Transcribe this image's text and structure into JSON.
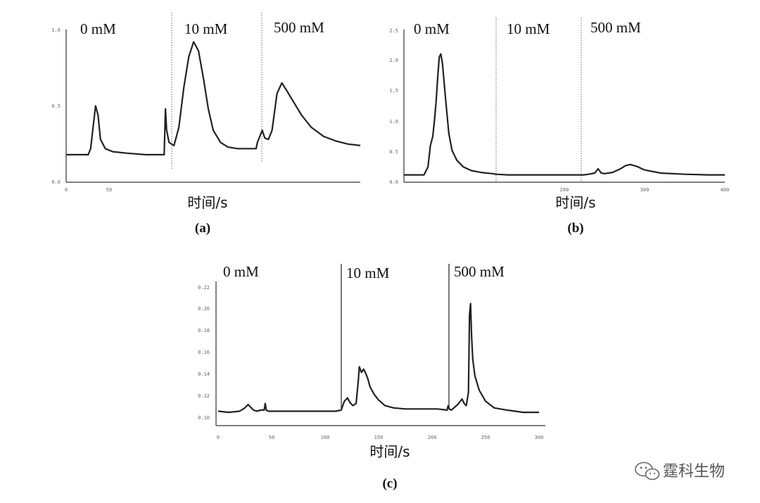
{
  "watermark": {
    "text": "霆科生物",
    "icon": "wechat-icon"
  },
  "chart_data": [
    {
      "type": "line",
      "panel": "(a)",
      "xlabel": "时间/s",
      "x_ticks": [
        "0",
        "50"
      ],
      "y_ticks": [
        "0.0",
        "0.5",
        "1.0"
      ],
      "xlim": [
        0,
        240
      ],
      "ylim": [
        0,
        1.0
      ],
      "segments": [
        {
          "label": "0 mM",
          "start": 0
        },
        {
          "label": "10 mM",
          "start": 80
        },
        {
          "label": "500 mM",
          "start": 155
        }
      ],
      "series": [
        {
          "x": [
            0,
            18,
            20,
            22,
            24,
            26,
            28,
            32,
            38,
            50,
            65,
            80,
            81,
            82,
            84,
            88,
            92,
            96,
            100,
            104,
            108,
            112,
            116,
            120,
            126,
            132,
            140,
            148,
            155,
            156,
            158,
            160,
            162,
            165,
            168,
            172,
            176,
            180,
            186,
            192,
            200,
            210,
            220,
            230,
            240
          ],
          "y": [
            0.18,
            0.18,
            0.22,
            0.36,
            0.5,
            0.44,
            0.28,
            0.22,
            0.2,
            0.19,
            0.18,
            0.18,
            0.48,
            0.34,
            0.26,
            0.24,
            0.36,
            0.62,
            0.82,
            0.92,
            0.86,
            0.68,
            0.48,
            0.34,
            0.26,
            0.23,
            0.22,
            0.22,
            0.22,
            0.26,
            0.3,
            0.34,
            0.29,
            0.28,
            0.34,
            0.58,
            0.65,
            0.6,
            0.52,
            0.44,
            0.36,
            0.3,
            0.27,
            0.25,
            0.24
          ]
        }
      ]
    },
    {
      "type": "line",
      "panel": "(b)",
      "xlabel": "时间/s",
      "x_ticks": [
        "200",
        "300",
        "400"
      ],
      "y_ticks": [
        "0.0",
        "0.5",
        "1.0",
        "1.5",
        "2.0",
        "2.5"
      ],
      "xlim": [
        0,
        400
      ],
      "ylim": [
        0,
        2.5
      ],
      "segments": [
        {
          "label": "0 mM",
          "start": 0
        },
        {
          "label": "10 mM",
          "start": 115
        },
        {
          "label": "500 mM",
          "start": 225
        }
      ],
      "series": [
        {
          "x": [
            0,
            25,
            30,
            33,
            36,
            38,
            40,
            42,
            44,
            46,
            48,
            52,
            56,
            60,
            66,
            74,
            84,
            96,
            110,
            115,
            130,
            160,
            200,
            224,
            230,
            238,
            242,
            246,
            250,
            260,
            270,
            276,
            282,
            290,
            300,
            320,
            350,
            380,
            400
          ],
          "y": [
            0.12,
            0.12,
            0.25,
            0.6,
            0.75,
            1.0,
            1.3,
            1.7,
            2.05,
            2.1,
            1.95,
            1.35,
            0.8,
            0.52,
            0.36,
            0.25,
            0.19,
            0.16,
            0.14,
            0.13,
            0.12,
            0.12,
            0.12,
            0.12,
            0.13,
            0.15,
            0.22,
            0.15,
            0.14,
            0.16,
            0.22,
            0.27,
            0.29,
            0.26,
            0.2,
            0.15,
            0.13,
            0.12,
            0.12
          ]
        }
      ]
    },
    {
      "type": "line",
      "panel": "(c)",
      "xlabel": "时间/s",
      "x_ticks": [
        "0",
        "50",
        "100",
        "150",
        "200",
        "250",
        "300"
      ],
      "y_ticks": [
        "0.10",
        "0.12",
        "0.14",
        "0.16",
        "0.18",
        "0.20",
        "0.22"
      ],
      "xlim": [
        0,
        300
      ],
      "ylim": [
        0.09,
        0.22
      ],
      "segments": [
        {
          "label": "0 mM",
          "start": 0
        },
        {
          "label": "10 mM",
          "start": 115
        },
        {
          "label": "500 mM",
          "start": 215
        }
      ],
      "series": [
        {
          "x": [
            0,
            10,
            20,
            25,
            28,
            30,
            33,
            36,
            40,
            43,
            44,
            45,
            47,
            55,
            70,
            90,
            110,
            115,
            118,
            121,
            123,
            126,
            129,
            131,
            132,
            134,
            136,
            138,
            140,
            142,
            146,
            150,
            156,
            164,
            175,
            190,
            205,
            214,
            215,
            216,
            218,
            224,
            228,
            230,
            232,
            234,
            235,
            236,
            237,
            238,
            240,
            244,
            250,
            258,
            270,
            285,
            300
          ],
          "y": [
            0.103,
            0.102,
            0.103,
            0.106,
            0.109,
            0.107,
            0.104,
            0.103,
            0.104,
            0.104,
            0.11,
            0.104,
            0.103,
            0.103,
            0.103,
            0.103,
            0.103,
            0.104,
            0.112,
            0.115,
            0.111,
            0.108,
            0.11,
            0.13,
            0.143,
            0.138,
            0.141,
            0.137,
            0.132,
            0.125,
            0.118,
            0.113,
            0.108,
            0.106,
            0.105,
            0.105,
            0.105,
            0.104,
            0.108,
            0.105,
            0.104,
            0.109,
            0.114,
            0.11,
            0.108,
            0.12,
            0.19,
            0.2,
            0.17,
            0.15,
            0.135,
            0.122,
            0.112,
            0.106,
            0.104,
            0.102,
            0.102
          ]
        }
      ]
    }
  ]
}
